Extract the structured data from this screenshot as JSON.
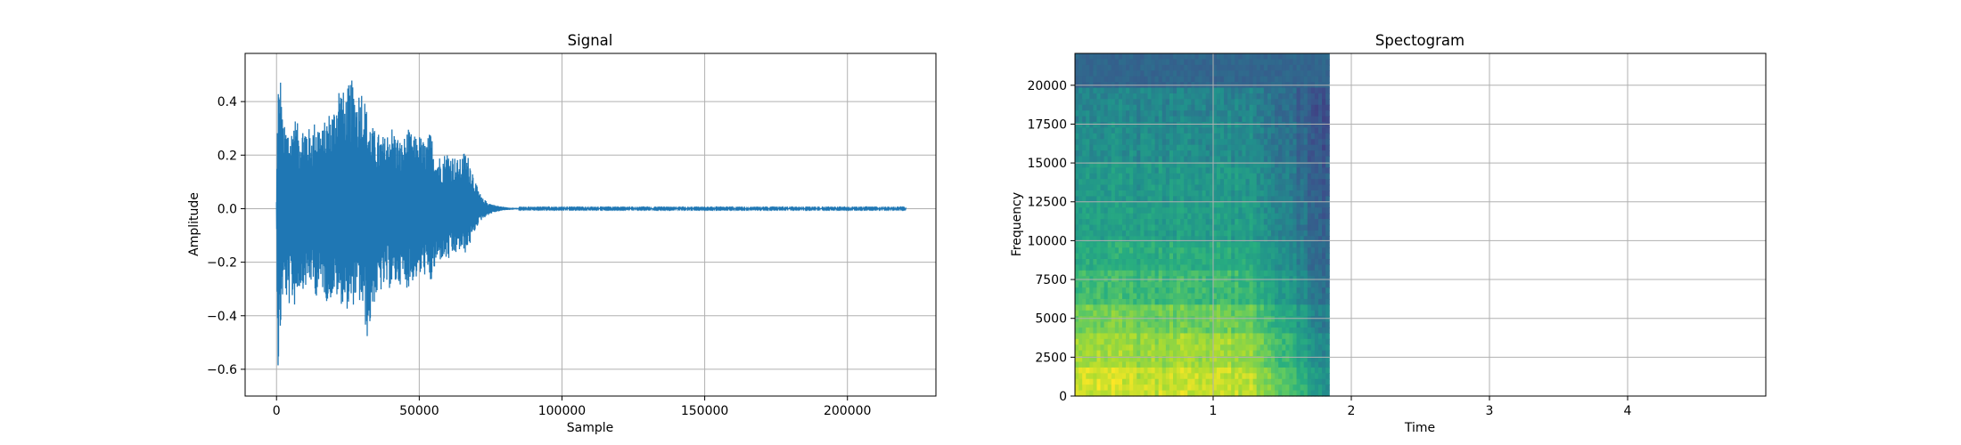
{
  "chart_data": [
    {
      "type": "line",
      "title": "Signal",
      "xlabel": "Sample",
      "ylabel": "Amplitude",
      "xlim": [
        -11000,
        231000
      ],
      "ylim": [
        -0.7,
        0.58
      ],
      "xticks": [
        0,
        50000,
        100000,
        150000,
        200000
      ],
      "xtick_labels": [
        "0",
        "50000",
        "100000",
        "150000",
        "200000"
      ],
      "yticks": [
        0.4,
        0.2,
        0.0,
        -0.2,
        -0.4,
        -0.6
      ],
      "ytick_labels": [
        "0.4",
        "0.2",
        "0.0",
        "−0.2",
        "−0.4",
        "−0.6"
      ],
      "grid": true,
      "series_color": "#1f77b4",
      "sample_count": 220500,
      "envelope": {
        "x": [
          0,
          500,
          1000,
          1500,
          2000,
          3000,
          4000,
          5000,
          6000,
          8000,
          10000,
          12000,
          14000,
          16000,
          18000,
          20000,
          22000,
          24000,
          26000,
          28000,
          30000,
          32000,
          34000,
          36000,
          38000,
          40000,
          42000,
          44000,
          46000,
          48000,
          50000,
          52000,
          54000,
          56000,
          58000,
          60000,
          62000,
          64000,
          66000,
          68000,
          70000,
          72000,
          74000,
          76000,
          78000,
          80000,
          85000,
          220500
        ],
        "upper": [
          0.03,
          0.53,
          0.45,
          0.52,
          0.35,
          0.3,
          0.32,
          0.28,
          0.36,
          0.3,
          0.33,
          0.29,
          0.35,
          0.3,
          0.36,
          0.38,
          0.49,
          0.42,
          0.49,
          0.44,
          0.47,
          0.35,
          0.3,
          0.28,
          0.27,
          0.32,
          0.28,
          0.25,
          0.3,
          0.27,
          0.28,
          0.25,
          0.29,
          0.2,
          0.2,
          0.22,
          0.2,
          0.18,
          0.22,
          0.18,
          0.09,
          0.04,
          0.025,
          0.015,
          0.01,
          0.006,
          0.002,
          0.002
        ],
        "lower": [
          -0.03,
          -0.63,
          -0.58,
          -0.45,
          -0.35,
          -0.3,
          -0.4,
          -0.32,
          -0.38,
          -0.3,
          -0.3,
          -0.28,
          -0.33,
          -0.3,
          -0.36,
          -0.32,
          -0.35,
          -0.37,
          -0.39,
          -0.33,
          -0.38,
          -0.5,
          -0.36,
          -0.32,
          -0.3,
          -0.3,
          -0.29,
          -0.28,
          -0.3,
          -0.27,
          -0.26,
          -0.25,
          -0.29,
          -0.21,
          -0.19,
          -0.2,
          -0.18,
          -0.16,
          -0.17,
          -0.13,
          -0.07,
          -0.04,
          -0.025,
          -0.015,
          -0.01,
          -0.006,
          -0.002,
          -0.002
        ]
      }
    },
    {
      "type": "heatmap",
      "title": "Spectogram",
      "xlabel": "Time",
      "ylabel": "Frequency",
      "xlim": [
        0,
        5
      ],
      "ylim": [
        0,
        22050
      ],
      "xticks": [
        1,
        2,
        3,
        4
      ],
      "xtick_labels": [
        "1",
        "2",
        "3",
        "4"
      ],
      "yticks": [
        0,
        2500,
        5000,
        7500,
        10000,
        12500,
        15000,
        17500,
        20000
      ],
      "ytick_labels": [
        "0",
        "2500",
        "5000",
        "7500",
        "10000",
        "12500",
        "15000",
        "17500",
        "20000"
      ],
      "grid": true,
      "colormap": "viridis",
      "data_time_extent": [
        0,
        1.84
      ],
      "bands": {
        "freq_ceiling": [
          2000,
          4000,
          6000,
          8000,
          10000,
          12500,
          15000,
          17500,
          19800,
          22050
        ],
        "level": [
          0.95,
          0.88,
          0.8,
          0.7,
          0.64,
          0.58,
          0.55,
          0.5,
          0.47,
          0.3
        ]
      },
      "time_profile": {
        "t": [
          0,
          0.2,
          0.5,
          0.9,
          1.25,
          1.45,
          1.6,
          1.75,
          1.84
        ],
        "gain": [
          1.0,
          1.0,
          0.95,
          0.98,
          0.95,
          0.82,
          0.7,
          0.58,
          0.5
        ]
      }
    }
  ]
}
